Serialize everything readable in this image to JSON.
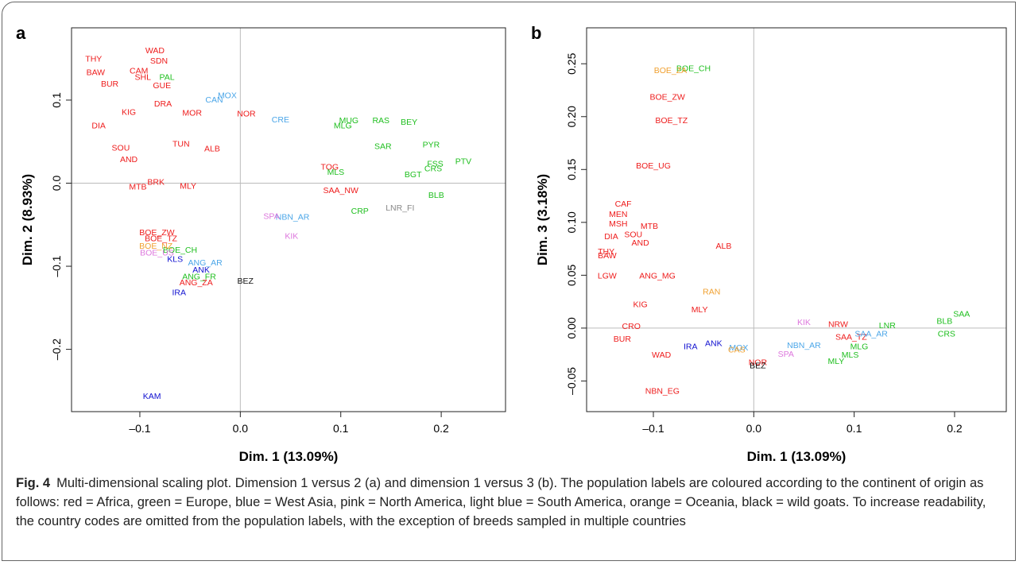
{
  "chart_data": [
    {
      "type": "scatter",
      "panel": "a",
      "xlabel": "Dim. 1 (13.09%)",
      "ylabel": "Dim. 2 (8.93%)",
      "xlim": [
        -0.168,
        0.264
      ],
      "ylim": [
        -0.275,
        0.187
      ],
      "xticks": [
        {
          "value": -0.1,
          "label": "–0.1"
        },
        {
          "value": 0,
          "label": "0.0"
        },
        0.1,
        0.2
      ],
      "yticks": [
        {
          "value": -0.2,
          "label": "–0.2"
        },
        {
          "value": -0.1,
          "label": "–0.1"
        },
        {
          "value": 0,
          "label": "0.0"
        },
        0.1
      ],
      "zero_lines": true,
      "series": [
        {
          "color": "#ee1c1c",
          "labels": [
            "WAD",
            "SDN",
            "THY",
            "BAW",
            "CAM",
            "SHL",
            "GUE",
            "BUR",
            "KIG",
            "DIA",
            "DRA",
            "MOR",
            "NOR",
            "SOU",
            "AND",
            "TUN",
            "ALB",
            "BRK",
            "MTB",
            "MLY",
            "BOE_ZW",
            "BOE_TZ",
            "ANG_ZA",
            "TOG",
            "SAA_NW"
          ],
          "x": [
            -0.085,
            -0.081,
            -0.146,
            -0.144,
            -0.101,
            -0.097,
            -0.078,
            -0.13,
            -0.111,
            -0.141,
            -0.077,
            -0.048,
            0.006,
            -0.119,
            -0.111,
            -0.059,
            -0.028,
            -0.084,
            -0.102,
            -0.052,
            -0.083,
            -0.079,
            -0.044,
            0.089,
            0.1
          ],
          "values": [
            0.16,
            0.148,
            0.15,
            0.134,
            0.136,
            0.128,
            0.118,
            0.12,
            0.086,
            0.07,
            0.096,
            0.085,
            0.084,
            0.043,
            0.029,
            0.048,
            0.042,
            0.002,
            -0.004,
            -0.003,
            -0.059,
            -0.066,
            -0.119,
            0.02,
            -0.008
          ]
        },
        {
          "color": "#1fbf1f",
          "labels": [
            "PAL",
            "MUG",
            "RAS",
            "MLG",
            "BEY",
            "SAR",
            "PYR",
            "PTV",
            "FSS",
            "CRS",
            "MLS",
            "BGT",
            "CRP",
            "BLB",
            "ANG_FR",
            "BOE_CH"
          ],
          "x": [
            -0.073,
            0.108,
            0.14,
            0.102,
            0.168,
            0.142,
            0.19,
            0.222,
            0.194,
            0.192,
            0.095,
            0.172,
            0.119,
            0.195,
            -0.041,
            -0.06
          ],
          "values": [
            0.128,
            0.076,
            0.076,
            0.07,
            0.074,
            0.045,
            0.047,
            0.027,
            0.024,
            0.018,
            0.014,
            0.011,
            -0.033,
            -0.014,
            -0.112,
            -0.08
          ]
        },
        {
          "color": "#1010d0",
          "labels": [
            "KLS",
            "IRA",
            "KAM",
            "ANK"
          ],
          "x": [
            -0.065,
            -0.061,
            -0.088,
            -0.039
          ],
          "values": [
            -0.091,
            -0.131,
            -0.256,
            -0.104
          ]
        },
        {
          "color": "#4ba6e8",
          "labels": [
            "CAN",
            "MOX",
            "CRE",
            "ANG_AR",
            "NBN_AR"
          ],
          "x": [
            -0.026,
            -0.013,
            0.04,
            -0.035,
            0.052
          ],
          "values": [
            0.101,
            0.106,
            0.077,
            -0.095,
            -0.04
          ]
        },
        {
          "color": "#dd77dd",
          "labels": [
            "SPA",
            "KIK",
            "BOE_US"
          ],
          "x": [
            0.031,
            0.051,
            -0.083
          ],
          "values": [
            -0.039,
            -0.063,
            -0.083
          ]
        },
        {
          "color": "#f0a030",
          "labels": [
            "BOE_NZ"
          ],
          "x": [
            -0.084
          ],
          "values": [
            -0.075
          ]
        },
        {
          "color": "#111111",
          "labels": [
            "BEZ"
          ],
          "x": [
            0.005
          ],
          "values": [
            -0.117
          ]
        },
        {
          "color": "#888888",
          "labels": [
            "LNR_FI"
          ],
          "x": [
            0.159
          ],
          "values": [
            -0.029
          ]
        }
      ]
    },
    {
      "type": "scatter",
      "panel": "b",
      "xlabel": "Dim. 1 (13.09%)",
      "ylabel": "Dim. 3 (3.18%)",
      "xlim": [
        -0.1665,
        0.2515
      ],
      "ylim": [
        -0.079,
        0.284
      ],
      "xticks": [
        {
          "value": -0.1,
          "label": "–0.1"
        },
        {
          "value": 0,
          "label": "0.0"
        },
        0.1,
        0.2
      ],
      "yticks": [
        {
          "value": -0.05,
          "label": "–0.05"
        },
        {
          "value": 0,
          "label": "0.00"
        },
        0.05,
        {
          "value": 0.1,
          "label": "0.10"
        },
        0.15,
        {
          "value": 0.2,
          "label": "0.20"
        },
        0.25
      ],
      "zero_lines": true,
      "series": [
        {
          "color": "#ee1c1c",
          "labels": [
            "BOE_ZW",
            "BOE_TZ",
            "BOE_UG",
            "CAF",
            "MEN",
            "MSH",
            "MTB",
            "DIA",
            "SOU",
            "AND",
            "THY",
            "BAW",
            "LGW",
            "ANG_MG",
            "ALB",
            "KIG",
            "MLY",
            "CRO",
            "BUR",
            "WAD",
            "NOR",
            "NBN_EG",
            "NRW",
            "SAA_TZ"
          ],
          "x": [
            -0.086,
            -0.082,
            -0.1,
            -0.13,
            -0.135,
            -0.135,
            -0.104,
            -0.142,
            -0.12,
            -0.113,
            -0.147,
            -0.146,
            -0.146,
            -0.096,
            -0.03,
            -0.113,
            -0.054,
            -0.122,
            -0.131,
            -0.092,
            0.004,
            -0.091,
            0.084,
            0.097
          ],
          "values": [
            0.219,
            0.197,
            0.154,
            0.118,
            0.108,
            0.099,
            0.097,
            0.087,
            0.089,
            0.081,
            0.073,
            0.069,
            0.05,
            0.05,
            0.078,
            0.023,
            0.018,
            0.002,
            -0.01,
            -0.025,
            -0.032,
            -0.059,
            0.004,
            -0.008
          ]
        },
        {
          "color": "#1fbf1f",
          "labels": [
            "BOE_CH",
            "MLY",
            "MLS",
            "SAA",
            "CRS",
            "BLB",
            "LNR",
            "MLG"
          ],
          "x": [
            -0.06,
            0.082,
            0.096,
            0.207,
            0.192,
            0.19,
            0.133,
            0.105
          ],
          "values": [
            0.246,
            -0.031,
            -0.025,
            0.014,
            -0.005,
            0.007,
            0.003,
            -0.017
          ]
        },
        {
          "color": "#1010d0",
          "labels": [
            "ANK",
            "IRA"
          ],
          "x": [
            -0.04,
            -0.063
          ],
          "values": [
            -0.014,
            -0.017
          ]
        },
        {
          "color": "#4ba6e8",
          "labels": [
            "MOX",
            "NBN_AR",
            "SAA_AR"
          ],
          "x": [
            -0.015,
            0.05,
            0.117
          ],
          "values": [
            -0.018,
            -0.016,
            -0.005
          ]
        },
        {
          "color": "#dd77dd",
          "labels": [
            "KIK",
            "SPA"
          ],
          "x": [
            0.05,
            0.032
          ],
          "values": [
            0.006,
            -0.024
          ]
        },
        {
          "color": "#f0a030",
          "labels": [
            "BOE_ZA",
            "RAN",
            "CAS"
          ],
          "x": [
            -0.083,
            -0.042,
            -0.017
          ],
          "values": [
            0.244,
            0.035,
            -0.02
          ]
        },
        {
          "color": "#111111",
          "labels": [
            "BEZ"
          ],
          "x": [
            0.004
          ],
          "values": [
            -0.035
          ]
        }
      ]
    }
  ],
  "caption_label": "Fig. 4",
  "caption": "Multi-dimensional scaling plot. Dimension 1 versus 2 (a) and dimension 1 versus 3 (b). The population labels are coloured according to the continent of origin as follows: red = Africa, green = Europe, blue = West Asia, pink = North America, light blue = South America, orange = Oceania, black = wild goats. To increase readability, the country codes are omitted from the population labels, with the exception of breeds sampled in multiple countries"
}
